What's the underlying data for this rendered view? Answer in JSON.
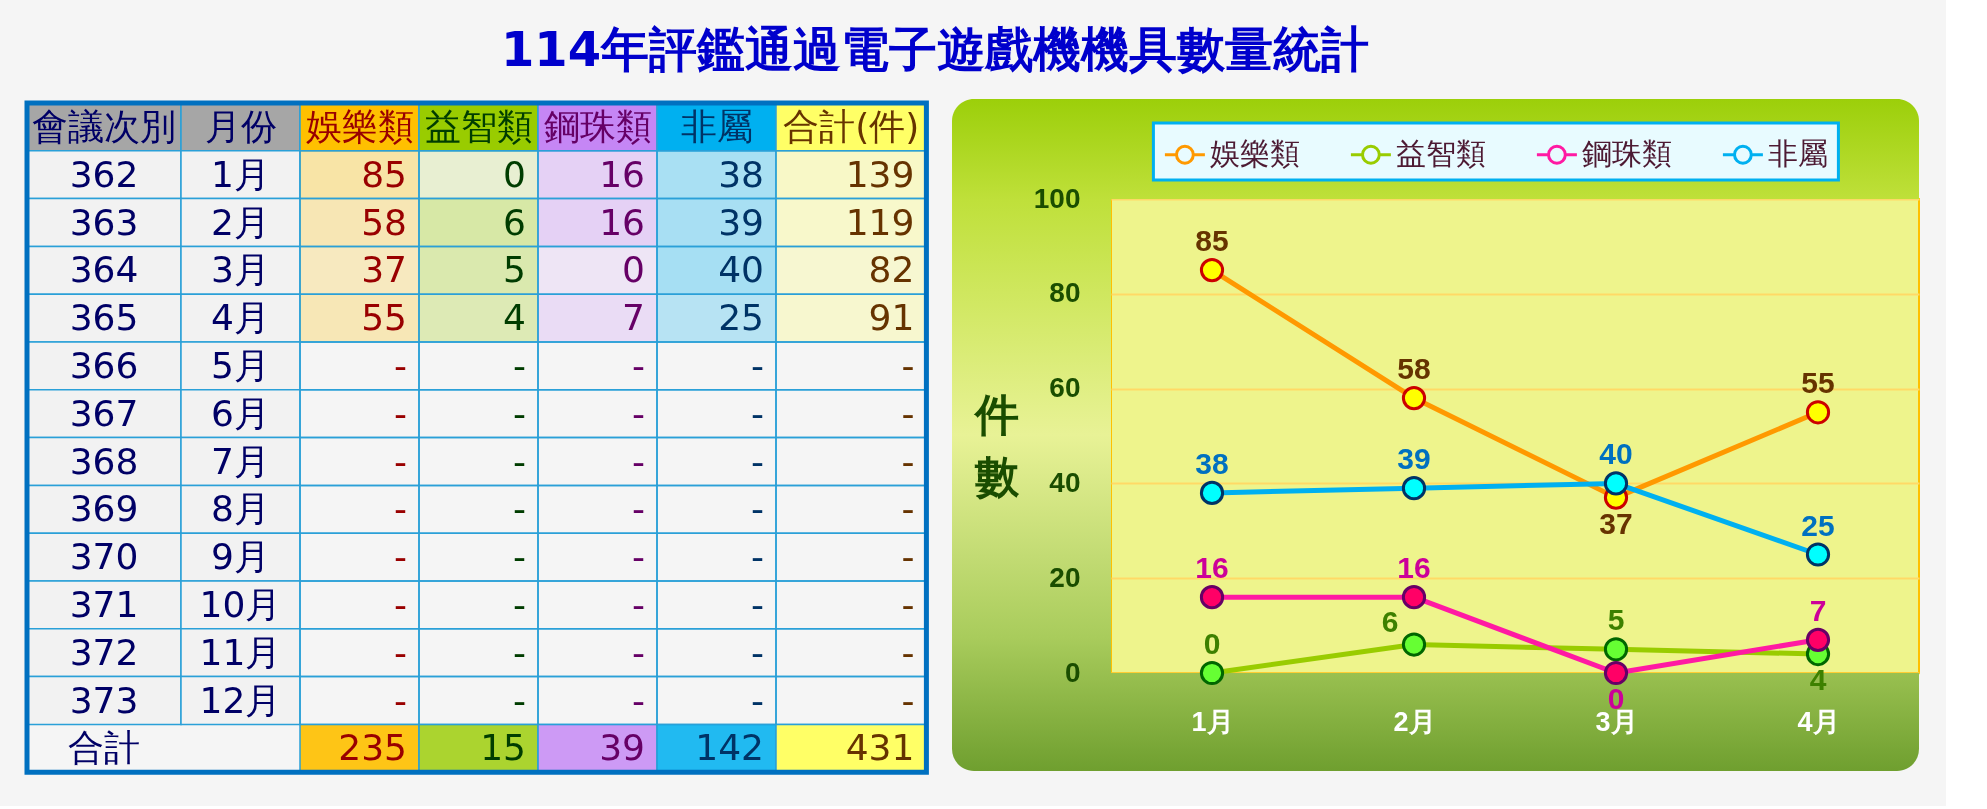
{
  "chart_data": [
    {
      "type": "heatmap",
      "title": "114年評鑑通過電子遊戲機機具數量統計",
      "ylabel": "會議次別",
      "y2label": "月份",
      "categories": [
        "娛樂類",
        "益智類",
        "鋼珠類",
        "非屬",
        "合計(件)"
      ],
      "y_categories": [
        "362",
        "363",
        "364",
        "365",
        "366",
        "367",
        "368",
        "369",
        "370",
        "371",
        "372",
        "373",
        "合計"
      ],
      "y2_categories": [
        "1月",
        "2月",
        "3月",
        "4月",
        "5月",
        "6月",
        "7月",
        "8月",
        "9月",
        "10月",
        "11月",
        "12月",
        null
      ],
      "cells": [
        [
          85,
          0,
          16,
          38,
          139
        ],
        [
          58,
          6,
          16,
          39,
          119
        ],
        [
          37,
          5,
          0,
          40,
          82
        ],
        [
          55,
          4,
          7,
          25,
          91
        ],
        [
          null,
          null,
          null,
          null,
          null
        ],
        [
          null,
          null,
          null,
          null,
          null
        ],
        [
          null,
          null,
          null,
          null,
          null
        ],
        [
          null,
          null,
          null,
          null,
          null
        ],
        [
          null,
          null,
          null,
          null,
          null
        ],
        [
          null,
          null,
          null,
          null,
          null
        ],
        [
          null,
          null,
          null,
          null,
          null
        ],
        [
          null,
          null,
          null,
          null,
          null
        ],
        [
          235,
          15,
          39,
          142,
          431
        ]
      ],
      "cell_labels": [
        [
          "85",
          "0",
          "16",
          "38",
          "139"
        ],
        [
          "58",
          "6",
          "16",
          "39",
          "119"
        ],
        [
          "37",
          "5",
          "0",
          "40",
          "82"
        ],
        [
          "55",
          "4",
          "7",
          "25",
          "91"
        ],
        [
          "-",
          "-",
          "-",
          "-",
          "-"
        ],
        [
          "-",
          "-",
          "-",
          "-",
          "-"
        ],
        [
          "-",
          "-",
          "-",
          "-",
          "-"
        ],
        [
          "-",
          "-",
          "-",
          "-",
          "-"
        ],
        [
          "-",
          "-",
          "-",
          "-",
          "-"
        ],
        [
          "-",
          "-",
          "-",
          "-",
          "-"
        ],
        [
          "-",
          "-",
          "-",
          "-",
          "-"
        ],
        [
          "-",
          "-",
          "-",
          "-",
          "-"
        ],
        [
          "235",
          "15",
          "39",
          "142",
          "431"
        ]
      ],
      "colors": [
        "#ffc000",
        "#99cc00",
        "#c586f5",
        "#00b0f0",
        "#ffff66"
      ]
    },
    {
      "type": "line",
      "categories": [
        "1月",
        "2月",
        "3月",
        "4月"
      ],
      "ylabel": "件數",
      "ylim": [
        0,
        100
      ],
      "yticks": [
        0,
        20,
        40,
        60,
        80,
        100
      ],
      "grid": "y",
      "legend": "top",
      "marker": "circle",
      "line_style": "solid",
      "data_labels": true,
      "series": [
        {
          "name": "娛樂類",
          "color": "#ff9900",
          "values": [
            85,
            58,
            37,
            55
          ]
        },
        {
          "name": "益智類",
          "color": "#99cc00",
          "values": [
            0,
            6,
            5,
            4
          ]
        },
        {
          "name": "鋼珠類",
          "color": "#ff1aa3",
          "values": [
            16,
            16,
            0,
            7
          ]
        },
        {
          "name": "非屬",
          "color": "#00b0f0",
          "values": [
            38,
            39,
            40,
            25
          ]
        }
      ]
    }
  ]
}
